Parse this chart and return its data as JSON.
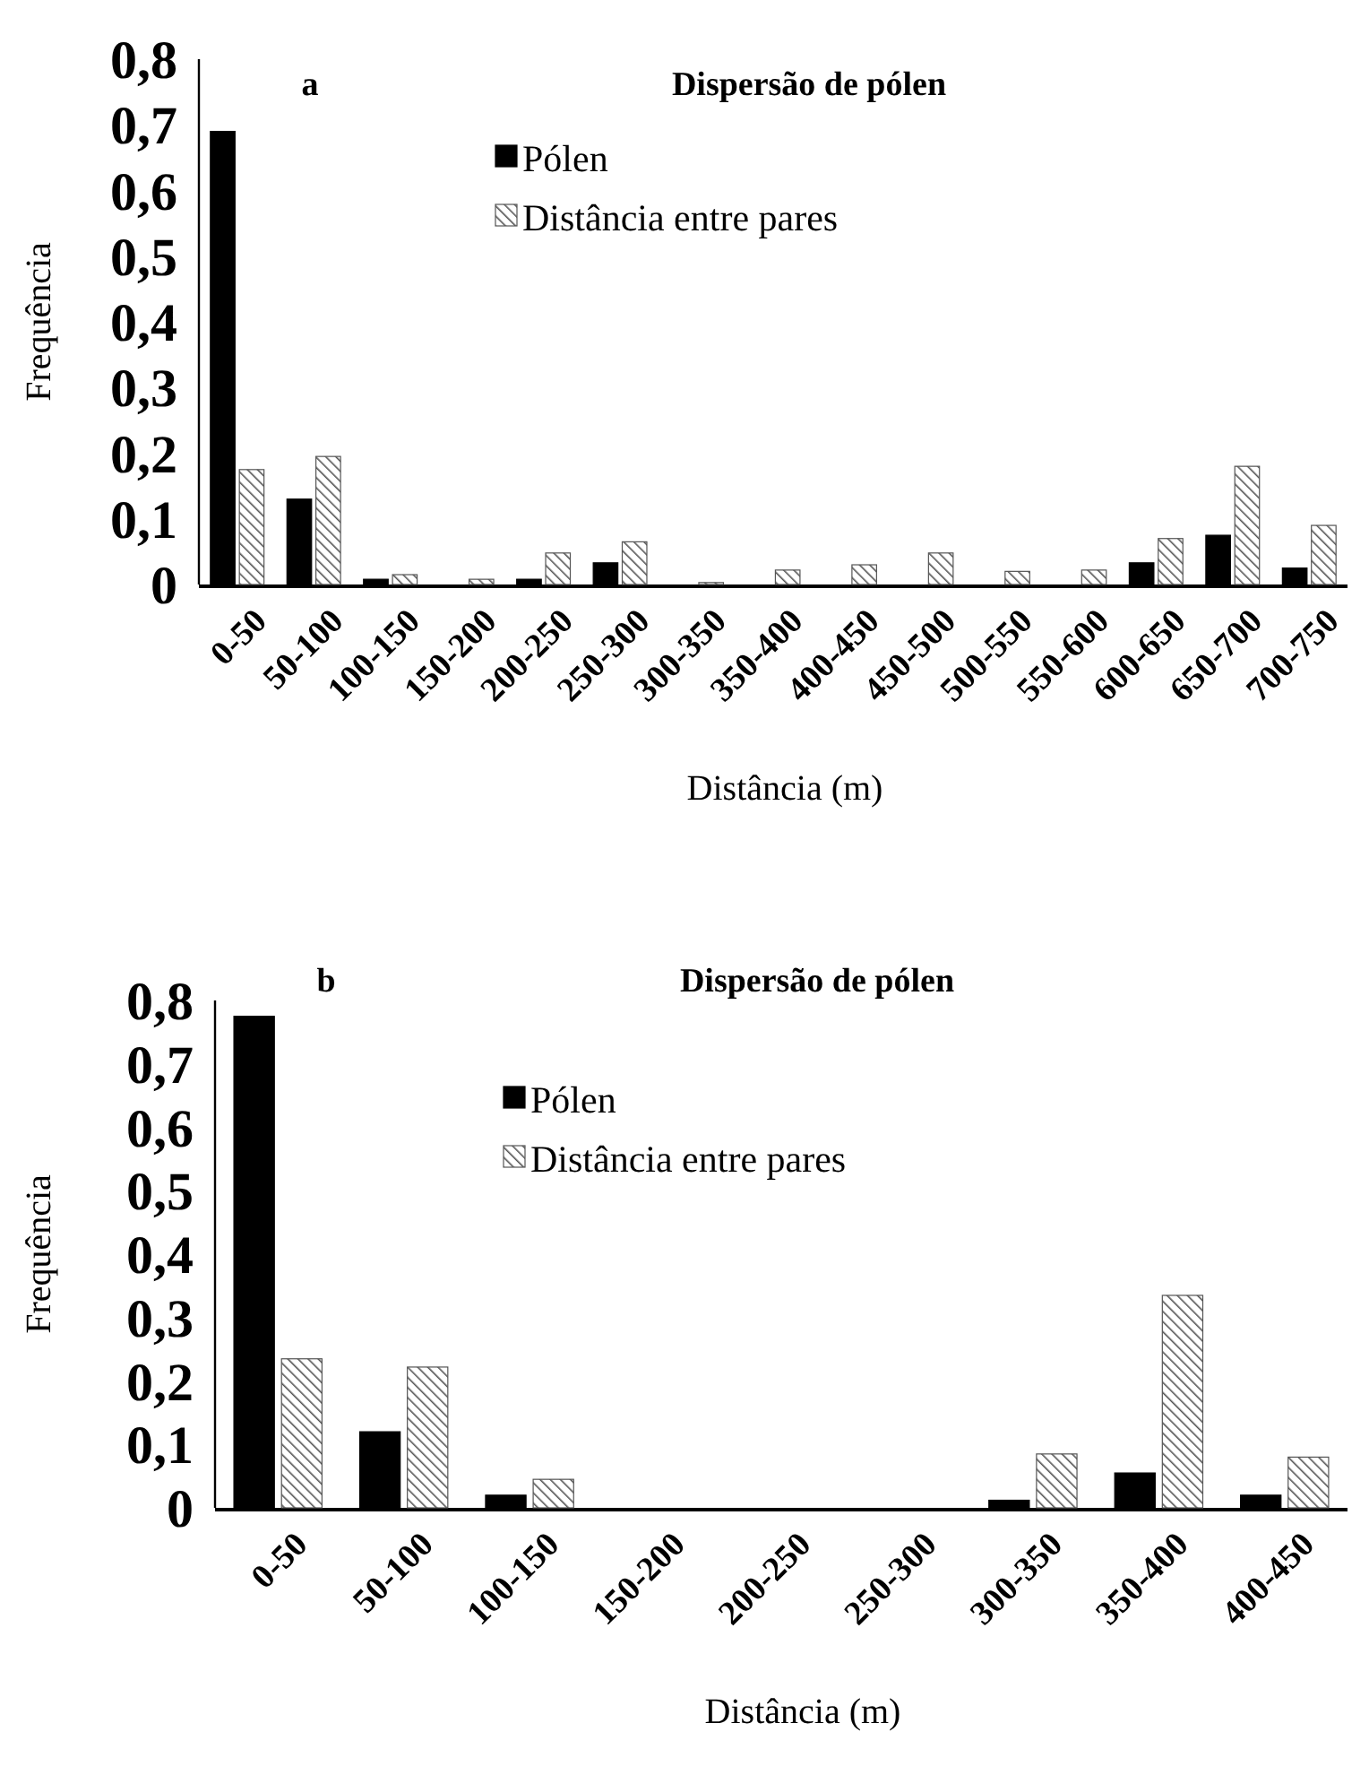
{
  "chart_data": [
    {
      "type": "bar",
      "title": "Dispersão de pólen",
      "annotations": [
        "a"
      ],
      "xlabel": "Distância (m)",
      "ylabel": "Frequência",
      "categories": [
        "0-50",
        "50-100",
        "100-150",
        "150-200",
        "200-250",
        "250-300",
        "300-350",
        "350-400",
        "400-450",
        "450-500",
        "500-550",
        "550-600",
        "600-650",
        "650-700",
        "700-750"
      ],
      "series": [
        {
          "name": "Pólen",
          "color": "#000000",
          "values": [
            0.69,
            0.13,
            0.008,
            0,
            0.008,
            0.033,
            0,
            0,
            0,
            0,
            0,
            0,
            0.033,
            0.075,
            0.025
          ]
        },
        {
          "name": "Distância entre pares",
          "color": "#555555",
          "values": [
            0.175,
            0.195,
            0.015,
            0.008,
            0.048,
            0.065,
            0.003,
            0.022,
            0.03,
            0.048,
            0.02,
            0.022,
            0.07,
            0.18,
            0.09
          ]
        }
      ],
      "ylim": [
        0,
        0.8
      ],
      "yticks": [
        0,
        {
          "value": 0.1,
          "label": "0,1"
        },
        {
          "value": 0.2,
          "label": "0,2"
        },
        {
          "value": 0.3,
          "label": "0,3"
        },
        {
          "value": 0.4,
          "label": "0,4"
        },
        {
          "value": 0.5,
          "label": "0,5"
        },
        {
          "value": 0.6,
          "label": "0,6"
        },
        {
          "value": 0.7,
          "label": "0,7"
        },
        {
          "value": 0.8,
          "label": "0,8"
        }
      ],
      "legend": "top"
    },
    {
      "type": "bar",
      "title": "Dispersão de pólen",
      "annotations": [
        "b"
      ],
      "xlabel": "Distância (m)",
      "ylabel": "Frequência",
      "categories": [
        "0-50",
        "50-100",
        "100-150",
        "150-200",
        "200-250",
        "250-300",
        "300-350",
        "350-400",
        "400-450"
      ],
      "series": [
        {
          "name": "Pólen",
          "color": "#000000",
          "values": [
            0.775,
            0.12,
            0.02,
            0,
            0,
            0,
            0.012,
            0.055,
            0.02
          ]
        },
        {
          "name": "Distância entre pares",
          "color": "#555555",
          "values": [
            0.235,
            0.222,
            0.045,
            0,
            0,
            0,
            0.085,
            0.335,
            0.08
          ]
        }
      ],
      "ylim": [
        0,
        0.8
      ],
      "yticks": [
        0,
        {
          "value": 0.1,
          "label": "0,1"
        },
        {
          "value": 0.2,
          "label": "0,2"
        },
        {
          "value": 0.3,
          "label": "0,3"
        },
        {
          "value": 0.4,
          "label": "0,4"
        },
        {
          "value": 0.5,
          "label": "0,5"
        },
        {
          "value": 0.6,
          "label": "0,6"
        },
        {
          "value": 0.7,
          "label": "0,7"
        },
        {
          "value": 0.8,
          "label": "0,8"
        }
      ],
      "legend": "top"
    }
  ]
}
